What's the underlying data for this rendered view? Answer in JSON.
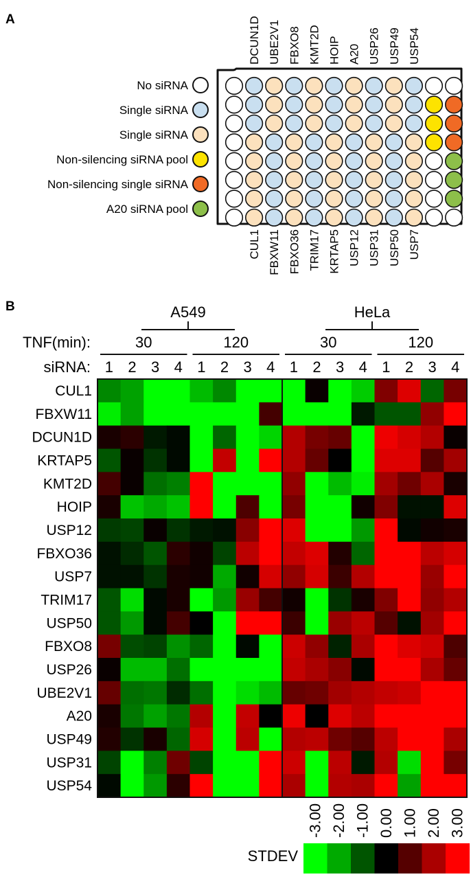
{
  "panel_a": {
    "label": "A",
    "legend": [
      {
        "text": "No siRNA",
        "color": "#ffffff"
      },
      {
        "text": "Single siRNA",
        "color": "#c9dff0"
      },
      {
        "text": "Single siRNA",
        "color": "#fce1bd"
      },
      {
        "text": "Non-silencing siRNA pool",
        "color": "#fde300"
      },
      {
        "text": "Non-silencing single siRNA",
        "color": "#f06a25"
      },
      {
        "text": "A20 siRNA pool",
        "color": "#8dbf4a"
      }
    ],
    "top_labels": [
      "DCUN1D",
      "UBE2V1",
      "FBXO8",
      "KMT2D",
      "HOIP",
      "A20",
      "USP26",
      "USP49",
      "USP54"
    ],
    "bottom_labels": [
      "CUL1",
      "FBXW11",
      "FBXO36",
      "TRIM17",
      "KRTAP5",
      "USP12",
      "USP31",
      "USP50",
      "USP7"
    ],
    "plate": [
      [
        "W",
        "B",
        "P",
        "B",
        "P",
        "B",
        "P",
        "B",
        "P",
        "B",
        "W",
        "W"
      ],
      [
        "W",
        "B",
        "P",
        "B",
        "P",
        "B",
        "P",
        "B",
        "P",
        "B",
        "Y",
        "O"
      ],
      [
        "W",
        "B",
        "P",
        "B",
        "P",
        "B",
        "P",
        "B",
        "P",
        "B",
        "Y",
        "O"
      ],
      [
        "W",
        "P",
        "B",
        "P",
        "B",
        "P",
        "B",
        "P",
        "B",
        "P",
        "Y",
        "O"
      ],
      [
        "W",
        "P",
        "B",
        "P",
        "B",
        "P",
        "B",
        "P",
        "B",
        "P",
        "W",
        "G"
      ],
      [
        "W",
        "P",
        "B",
        "P",
        "B",
        "P",
        "B",
        "P",
        "B",
        "P",
        "W",
        "G"
      ],
      [
        "W",
        "P",
        "B",
        "P",
        "B",
        "P",
        "B",
        "P",
        "B",
        "P",
        "W",
        "G"
      ],
      [
        "W",
        "P",
        "B",
        "P",
        "B",
        "P",
        "B",
        "P",
        "B",
        "P",
        "W",
        "W"
      ]
    ],
    "plate_colors": {
      "W": "#ffffff",
      "B": "#c9dff0",
      "P": "#fce1bd",
      "Y": "#fde300",
      "O": "#f06a25",
      "G": "#8dbf4a"
    }
  },
  "chart_data": {
    "type": "heatmap",
    "panel_label": "B",
    "cell_lines": [
      "A549",
      "HeLa"
    ],
    "tnf_label": "TNF(min):",
    "tnf_times": [
      "30",
      "120",
      "30",
      "120"
    ],
    "sirna_label": "siRNA:",
    "sirna_ids": [
      "1",
      "2",
      "3",
      "4",
      "1",
      "2",
      "3",
      "4",
      "1",
      "2",
      "3",
      "4",
      "1",
      "2",
      "3",
      "4"
    ],
    "rows": [
      "CUL1",
      "FBXW11",
      "DCUN1D",
      "KRTAP5",
      "KMT2D",
      "HOIP",
      "USP12",
      "FBXO36",
      "USP7",
      "TRIM17",
      "USP50",
      "FBXO8",
      "USP26",
      "UBE2V1",
      "A20",
      "USP49",
      "USP31",
      "USP54"
    ],
    "values": [
      [
        -1.6,
        -1.9,
        -3,
        -3,
        -2.2,
        -1.6,
        -3,
        -3,
        -3,
        0.1,
        -3,
        -2.4,
        1.5,
        2.6,
        -1.2,
        1.4
      ],
      [
        -2.8,
        -1.9,
        -3,
        -3,
        -3,
        -3,
        -3,
        0.8,
        -3,
        -3,
        -3,
        -0.3,
        -1.0,
        -1.0,
        1.7,
        3
      ],
      [
        0.3,
        0.5,
        -0.3,
        -0.1,
        -3,
        -1.2,
        -3,
        -2.5,
        2.1,
        1.4,
        1.2,
        -3,
        2.8,
        2.5,
        2.1,
        0.1
      ],
      [
        -1.0,
        0.1,
        -0.6,
        -0.1,
        -3,
        2.3,
        -3,
        3,
        2.1,
        1.2,
        0,
        -3,
        2.6,
        2.6,
        1.0,
        1.9
      ],
      [
        0.8,
        0.1,
        -1.3,
        -1.5,
        3,
        -3,
        -3,
        -3,
        1.7,
        -3,
        -2.2,
        -2.8,
        1.9,
        1.3,
        2.0,
        0.3
      ],
      [
        0.3,
        -2.3,
        -2.0,
        -2.3,
        3,
        -3,
        0.9,
        -3,
        1.4,
        -3,
        -3,
        0.2,
        1.5,
        -0.2,
        -0.2,
        2.6
      ],
      [
        -0.7,
        -0.8,
        0.1,
        -0.6,
        -0.3,
        -0.2,
        1.6,
        3,
        2.6,
        -3,
        -3,
        -1.8,
        3,
        -0.1,
        0.2,
        0.3
      ],
      [
        -0.2,
        -0.5,
        -1.0,
        0.5,
        0.2,
        -0.8,
        2.2,
        3,
        2.3,
        2.6,
        0.4,
        -1.2,
        3,
        3,
        2.2,
        2.5
      ],
      [
        -0.2,
        -0.2,
        -0.6,
        0.3,
        0.2,
        -2.0,
        0.2,
        2.5,
        1.7,
        2.5,
        0.7,
        2.1,
        3,
        3,
        1.8,
        3
      ],
      [
        -1.0,
        -2.6,
        -0.1,
        0.3,
        -3,
        -1.8,
        1.8,
        0.8,
        0.2,
        -3,
        -0.6,
        0.3,
        1.5,
        3,
        1.7,
        2.1
      ],
      [
        -1.0,
        -1.8,
        -0.1,
        0.8,
        0,
        -3,
        3,
        3,
        0.7,
        -3,
        1.8,
        2.2,
        1.0,
        -0.2,
        1.9,
        3
      ],
      [
        1.4,
        -0.9,
        -0.8,
        -1.7,
        -1.2,
        -3,
        -0.1,
        -3,
        2.4,
        1.7,
        -0.4,
        2.0,
        3,
        2.6,
        2.4,
        0.9
      ],
      [
        0.1,
        -2.2,
        -2.2,
        -1.3,
        -3,
        -3,
        -3,
        -3,
        2.3,
        2.0,
        1.6,
        -0.1,
        3,
        3,
        2.0,
        1.2
      ],
      [
        1.2,
        -1.3,
        -1.4,
        -0.5,
        -1.3,
        -3,
        -2.6,
        -2.2,
        1.2,
        1.3,
        1.9,
        2.1,
        2.3,
        2.4,
        3,
        3
      ],
      [
        0.3,
        -1.4,
        -1.9,
        -1.4,
        2.1,
        -3,
        2.3,
        0,
        2.8,
        0,
        2.6,
        2.2,
        3,
        3,
        3,
        3
      ],
      [
        0.4,
        -0.6,
        0.3,
        -1.2,
        2.5,
        -3,
        2.2,
        -3,
        2.1,
        2.2,
        1.3,
        1.0,
        2.2,
        3,
        3,
        2.0
      ],
      [
        -0.8,
        -3,
        -1.5,
        1.3,
        -0.8,
        -3,
        -3,
        3,
        2.4,
        -3,
        2.2,
        -0.3,
        2.1,
        -2.6,
        3,
        1.4
      ],
      [
        -0.1,
        -3,
        -1.8,
        0.5,
        3,
        -3,
        -3,
        3,
        2.0,
        -3,
        2.1,
        2.0,
        3,
        -1.9,
        3,
        3
      ]
    ],
    "color_scale": {
      "label": "STDEV",
      "ticks": [
        "-3.00",
        "-2.00",
        "-1.00",
        "0.00",
        "1.00",
        "2.00",
        "3.00"
      ],
      "range": [
        -3,
        3
      ],
      "low_color": "#00ff00",
      "mid_color": "#000000",
      "high_color": "#ff0000"
    }
  }
}
